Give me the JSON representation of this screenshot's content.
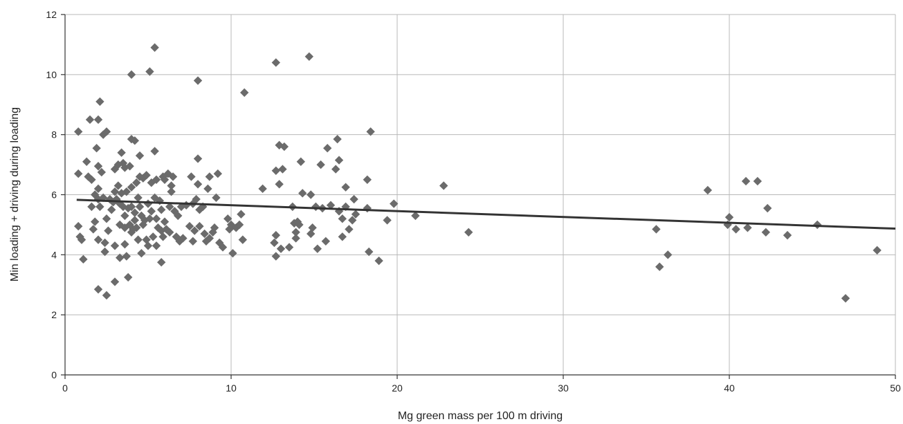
{
  "chart_data": {
    "type": "scatter",
    "title": "",
    "xlabel": "Mg green mass per 100 m driving",
    "ylabel": "Min loading + driving during loading",
    "xlim": [
      0,
      50
    ],
    "ylim": [
      0,
      12
    ],
    "x_ticks": [
      0,
      10,
      20,
      30,
      40,
      50
    ],
    "y_ticks": [
      0,
      2,
      4,
      6,
      8,
      10,
      12
    ],
    "x_tick_labels": [
      "0",
      "10",
      "20",
      "30",
      "40",
      "50"
    ],
    "y_tick_labels": [
      "0",
      "2",
      "4",
      "6",
      "8",
      "10",
      "12"
    ],
    "grid": true,
    "legend": "none",
    "colors": {
      "points": "#6b6b6b",
      "trendline": "#333333",
      "grid": "#b8b8b8"
    },
    "trendline": {
      "type": "linear",
      "x": [
        0.7,
        50
      ],
      "y": [
        5.83,
        4.87
      ]
    },
    "series": [
      {
        "values": [
          [
            0.8,
            8.1
          ],
          [
            0.8,
            6.7
          ],
          [
            0.8,
            4.95
          ],
          [
            0.9,
            4.6
          ],
          [
            1.0,
            4.5
          ],
          [
            1.1,
            3.85
          ],
          [
            1.3,
            7.1
          ],
          [
            1.4,
            6.6
          ],
          [
            1.5,
            8.5
          ],
          [
            1.6,
            5.6
          ],
          [
            1.6,
            6.5
          ],
          [
            1.7,
            4.85
          ],
          [
            1.8,
            5.1
          ],
          [
            1.8,
            6.0
          ],
          [
            1.9,
            7.55
          ],
          [
            2.0,
            8.5
          ],
          [
            2.0,
            6.95
          ],
          [
            2.0,
            6.2
          ],
          [
            2.0,
            5.85
          ],
          [
            2.0,
            4.5
          ],
          [
            2.0,
            2.85
          ],
          [
            2.1,
            9.1
          ],
          [
            2.1,
            5.6
          ],
          [
            2.2,
            6.75
          ],
          [
            2.3,
            8.0
          ],
          [
            2.3,
            5.9
          ],
          [
            2.4,
            4.4
          ],
          [
            2.4,
            4.1
          ],
          [
            2.5,
            8.1
          ],
          [
            2.5,
            5.2
          ],
          [
            2.5,
            2.65
          ],
          [
            2.6,
            4.8
          ],
          [
            2.7,
            5.85
          ],
          [
            2.8,
            5.5
          ],
          [
            2.9,
            5.75
          ],
          [
            3.0,
            6.1
          ],
          [
            3.0,
            6.85
          ],
          [
            3.0,
            4.3
          ],
          [
            3.0,
            3.1
          ],
          [
            3.1,
            5.85
          ],
          [
            3.2,
            7.0
          ],
          [
            3.2,
            6.3
          ],
          [
            3.3,
            5.7
          ],
          [
            3.3,
            5.0
          ],
          [
            3.3,
            3.9
          ],
          [
            3.4,
            7.4
          ],
          [
            3.4,
            6.05
          ],
          [
            3.5,
            7.05
          ],
          [
            3.5,
            5.6
          ],
          [
            3.6,
            6.9
          ],
          [
            3.6,
            5.3
          ],
          [
            3.6,
            4.9
          ],
          [
            3.6,
            4.35
          ],
          [
            3.7,
            6.1
          ],
          [
            3.7,
            3.95
          ],
          [
            3.8,
            5.55
          ],
          [
            3.8,
            3.25
          ],
          [
            3.9,
            6.95
          ],
          [
            3.9,
            5.0
          ],
          [
            4.0,
            10.0
          ],
          [
            4.0,
            7.85
          ],
          [
            4.0,
            6.25
          ],
          [
            4.0,
            5.6
          ],
          [
            4.0,
            4.75
          ],
          [
            4.1,
            4.85
          ],
          [
            4.2,
            7.8
          ],
          [
            4.2,
            5.4
          ],
          [
            4.2,
            5.15
          ],
          [
            4.3,
            6.4
          ],
          [
            4.3,
            4.9
          ],
          [
            4.4,
            5.9
          ],
          [
            4.4,
            4.5
          ],
          [
            4.5,
            7.3
          ],
          [
            4.5,
            6.6
          ],
          [
            4.5,
            5.6
          ],
          [
            4.6,
            5.3
          ],
          [
            4.6,
            4.05
          ],
          [
            4.7,
            6.55
          ],
          [
            4.7,
            5.0
          ],
          [
            4.8,
            5.15
          ],
          [
            4.9,
            6.65
          ],
          [
            4.9,
            4.5
          ],
          [
            5.0,
            5.7
          ],
          [
            5.0,
            4.3
          ],
          [
            5.1,
            10.1
          ],
          [
            5.1,
            5.2
          ],
          [
            5.2,
            6.4
          ],
          [
            5.2,
            5.45
          ],
          [
            5.3,
            4.6
          ],
          [
            5.4,
            10.9
          ],
          [
            5.4,
            7.45
          ],
          [
            5.4,
            5.9
          ],
          [
            5.5,
            6.5
          ],
          [
            5.5,
            5.2
          ],
          [
            5.5,
            4.3
          ],
          [
            5.6,
            4.9
          ],
          [
            5.7,
            5.8
          ],
          [
            5.8,
            5.5
          ],
          [
            5.8,
            4.8
          ],
          [
            5.8,
            3.75
          ],
          [
            5.9,
            6.6
          ],
          [
            5.9,
            4.6
          ],
          [
            6.0,
            6.5
          ],
          [
            6.0,
            5.1
          ],
          [
            6.1,
            4.85
          ],
          [
            6.2,
            6.7
          ],
          [
            6.3,
            5.6
          ],
          [
            6.3,
            4.75
          ],
          [
            6.4,
            6.3
          ],
          [
            6.4,
            6.1
          ],
          [
            6.5,
            6.6
          ],
          [
            6.6,
            5.45
          ],
          [
            6.7,
            4.6
          ],
          [
            6.8,
            5.3
          ],
          [
            6.9,
            4.45
          ],
          [
            7.0,
            5.6
          ],
          [
            7.1,
            4.55
          ],
          [
            7.3,
            5.65
          ],
          [
            7.5,
            4.95
          ],
          [
            7.6,
            6.6
          ],
          [
            7.7,
            5.7
          ],
          [
            7.7,
            4.45
          ],
          [
            7.8,
            4.8
          ],
          [
            7.9,
            5.85
          ],
          [
            8.0,
            9.8
          ],
          [
            8.0,
            7.2
          ],
          [
            8.0,
            6.35
          ],
          [
            8.1,
            5.5
          ],
          [
            8.1,
            4.95
          ],
          [
            8.3,
            5.6
          ],
          [
            8.4,
            4.7
          ],
          [
            8.5,
            4.45
          ],
          [
            8.6,
            6.2
          ],
          [
            8.7,
            6.6
          ],
          [
            8.7,
            4.55
          ],
          [
            8.9,
            4.75
          ],
          [
            9.0,
            4.9
          ],
          [
            9.1,
            5.9
          ],
          [
            9.2,
            6.7
          ],
          [
            9.3,
            4.4
          ],
          [
            9.5,
            4.25
          ],
          [
            9.8,
            5.2
          ],
          [
            9.9,
            4.85
          ],
          [
            10.0,
            5.0
          ],
          [
            10.1,
            4.05
          ],
          [
            10.3,
            4.9
          ],
          [
            10.5,
            5.0
          ],
          [
            10.6,
            5.35
          ],
          [
            10.7,
            4.5
          ],
          [
            10.8,
            9.4
          ],
          [
            11.9,
            6.2
          ],
          [
            12.6,
            4.4
          ],
          [
            12.7,
            10.4
          ],
          [
            12.7,
            6.8
          ],
          [
            12.7,
            4.65
          ],
          [
            12.7,
            3.95
          ],
          [
            12.9,
            7.65
          ],
          [
            12.9,
            6.35
          ],
          [
            13.0,
            4.2
          ],
          [
            13.1,
            6.85
          ],
          [
            13.2,
            7.6
          ],
          [
            13.5,
            4.25
          ],
          [
            13.7,
            5.6
          ],
          [
            13.8,
            5.05
          ],
          [
            13.9,
            4.75
          ],
          [
            13.9,
            4.55
          ],
          [
            14.0,
            5.1
          ],
          [
            14.1,
            5.0
          ],
          [
            14.2,
            7.1
          ],
          [
            14.3,
            6.05
          ],
          [
            14.7,
            10.6
          ],
          [
            14.8,
            4.7
          ],
          [
            14.8,
            6.0
          ],
          [
            14.9,
            4.9
          ],
          [
            15.1,
            5.6
          ],
          [
            15.2,
            4.2
          ],
          [
            15.4,
            7.0
          ],
          [
            15.5,
            5.55
          ],
          [
            15.7,
            4.45
          ],
          [
            15.8,
            7.55
          ],
          [
            16.0,
            5.65
          ],
          [
            16.3,
            6.85
          ],
          [
            16.4,
            7.85
          ],
          [
            16.5,
            5.45
          ],
          [
            16.5,
            7.15
          ],
          [
            16.7,
            4.6
          ],
          [
            16.7,
            5.2
          ],
          [
            16.9,
            6.25
          ],
          [
            16.9,
            5.6
          ],
          [
            17.1,
            4.85
          ],
          [
            17.3,
            5.15
          ],
          [
            17.4,
            5.85
          ],
          [
            17.5,
            5.35
          ],
          [
            18.2,
            6.5
          ],
          [
            18.2,
            5.55
          ],
          [
            18.3,
            4.1
          ],
          [
            18.4,
            8.1
          ],
          [
            18.9,
            3.8
          ],
          [
            19.4,
            5.15
          ],
          [
            19.8,
            5.7
          ],
          [
            21.1,
            5.3
          ],
          [
            22.8,
            6.3
          ],
          [
            24.3,
            4.75
          ],
          [
            35.6,
            4.85
          ],
          [
            35.8,
            3.6
          ],
          [
            36.3,
            4.0
          ],
          [
            38.7,
            6.15
          ],
          [
            39.9,
            5.0
          ],
          [
            40.0,
            5.25
          ],
          [
            40.4,
            4.85
          ],
          [
            41.0,
            6.45
          ],
          [
            41.1,
            4.9
          ],
          [
            41.7,
            6.45
          ],
          [
            42.2,
            4.75
          ],
          [
            42.3,
            5.55
          ],
          [
            43.5,
            4.65
          ],
          [
            45.3,
            5.0
          ],
          [
            47.0,
            2.55
          ],
          [
            48.9,
            4.15
          ]
        ]
      }
    ]
  }
}
